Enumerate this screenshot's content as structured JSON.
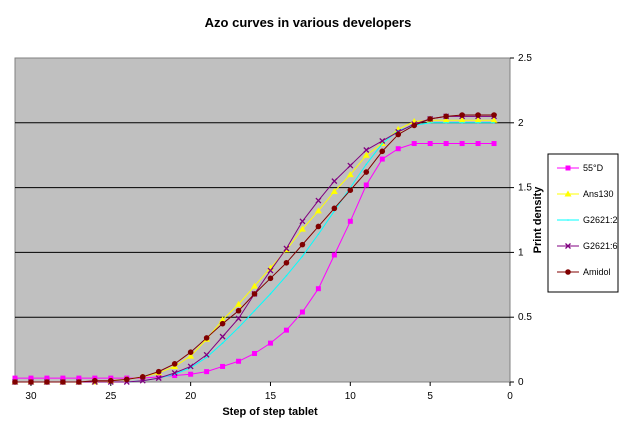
{
  "chart_data": {
    "type": "line",
    "title": "Azo curves in various developers",
    "xlabel": "Step of step tablet",
    "ylabel": "Print density",
    "xlim": [
      31,
      0
    ],
    "ylim": [
      0,
      2.5
    ],
    "x_ticks": [
      "30",
      "25",
      "20",
      "15",
      "10",
      "5",
      "0"
    ],
    "x_tick_values": [
      30,
      25,
      20,
      15,
      10,
      5,
      0
    ],
    "y_ticks": [
      "0",
      "0.5",
      "1",
      "1.5",
      "2",
      "2.5"
    ],
    "y_tick_values": [
      0,
      0.5,
      1,
      1.5,
      2,
      2.5
    ],
    "grid": "horizontal",
    "legend_position": "right",
    "plot_background": "#c0c0c0",
    "x": [
      31,
      30,
      29,
      28,
      27,
      26,
      25,
      24,
      23,
      22,
      21,
      20,
      19,
      18,
      17,
      16,
      15,
      14,
      13,
      12,
      11,
      10,
      9,
      8,
      7,
      6,
      5,
      4,
      3,
      2,
      1
    ],
    "series": [
      {
        "name": "55°D",
        "color": "#ff00ff",
        "marker": "square",
        "values": [
          0.03,
          0.03,
          0.03,
          0.03,
          0.03,
          0.03,
          0.03,
          0.03,
          0.03,
          0.04,
          0.05,
          0.06,
          0.08,
          0.12,
          0.16,
          0.22,
          0.3,
          0.4,
          0.54,
          0.72,
          0.98,
          1.24,
          1.52,
          1.72,
          1.8,
          1.84,
          1.84,
          1.84,
          1.84,
          1.84,
          1.84
        ]
      },
      {
        "name": "Ans130",
        "color": "#ffff00",
        "marker": "triangle",
        "values": [
          0,
          0,
          0,
          0,
          0,
          0,
          0.01,
          0.02,
          0.04,
          0.07,
          0.12,
          0.2,
          0.33,
          0.48,
          0.6,
          0.74,
          0.88,
          1.02,
          1.18,
          1.32,
          1.47,
          1.6,
          1.75,
          1.84,
          1.95,
          2.01,
          2.02,
          2.02,
          2.02,
          2.02,
          2.02
        ]
      },
      {
        "name": "G2621:2",
        "color": "#00ffff",
        "marker": "none",
        "values": [
          0,
          0,
          0,
          0,
          0,
          0,
          0,
          0,
          0.01,
          0.03,
          0.06,
          0.11,
          0.19,
          0.3,
          0.42,
          0.55,
          0.68,
          0.82,
          0.97,
          1.14,
          1.32,
          1.5,
          1.68,
          1.84,
          1.94,
          1.98,
          2,
          2,
          2,
          2,
          2
        ]
      },
      {
        "name": "G2621:6",
        "color": "#800080",
        "marker": "x",
        "values": [
          0,
          0,
          0,
          0,
          0,
          0,
          0,
          0,
          0.01,
          0.03,
          0.07,
          0.12,
          0.21,
          0.35,
          0.49,
          0.68,
          0.86,
          1.03,
          1.24,
          1.4,
          1.55,
          1.67,
          1.79,
          1.86,
          1.93,
          1.99,
          2.03,
          2.05,
          2.05,
          2.05,
          2.05
        ]
      },
      {
        "name": "Amidol",
        "color": "#800000",
        "marker": "circle",
        "values": [
          0,
          0,
          0,
          0,
          0,
          0.01,
          0.01,
          0.02,
          0.04,
          0.08,
          0.14,
          0.23,
          0.34,
          0.45,
          0.55,
          0.68,
          0.8,
          0.92,
          1.06,
          1.2,
          1.34,
          1.48,
          1.62,
          1.78,
          1.91,
          1.98,
          2.03,
          2.05,
          2.06,
          2.06,
          2.06
        ]
      }
    ]
  }
}
